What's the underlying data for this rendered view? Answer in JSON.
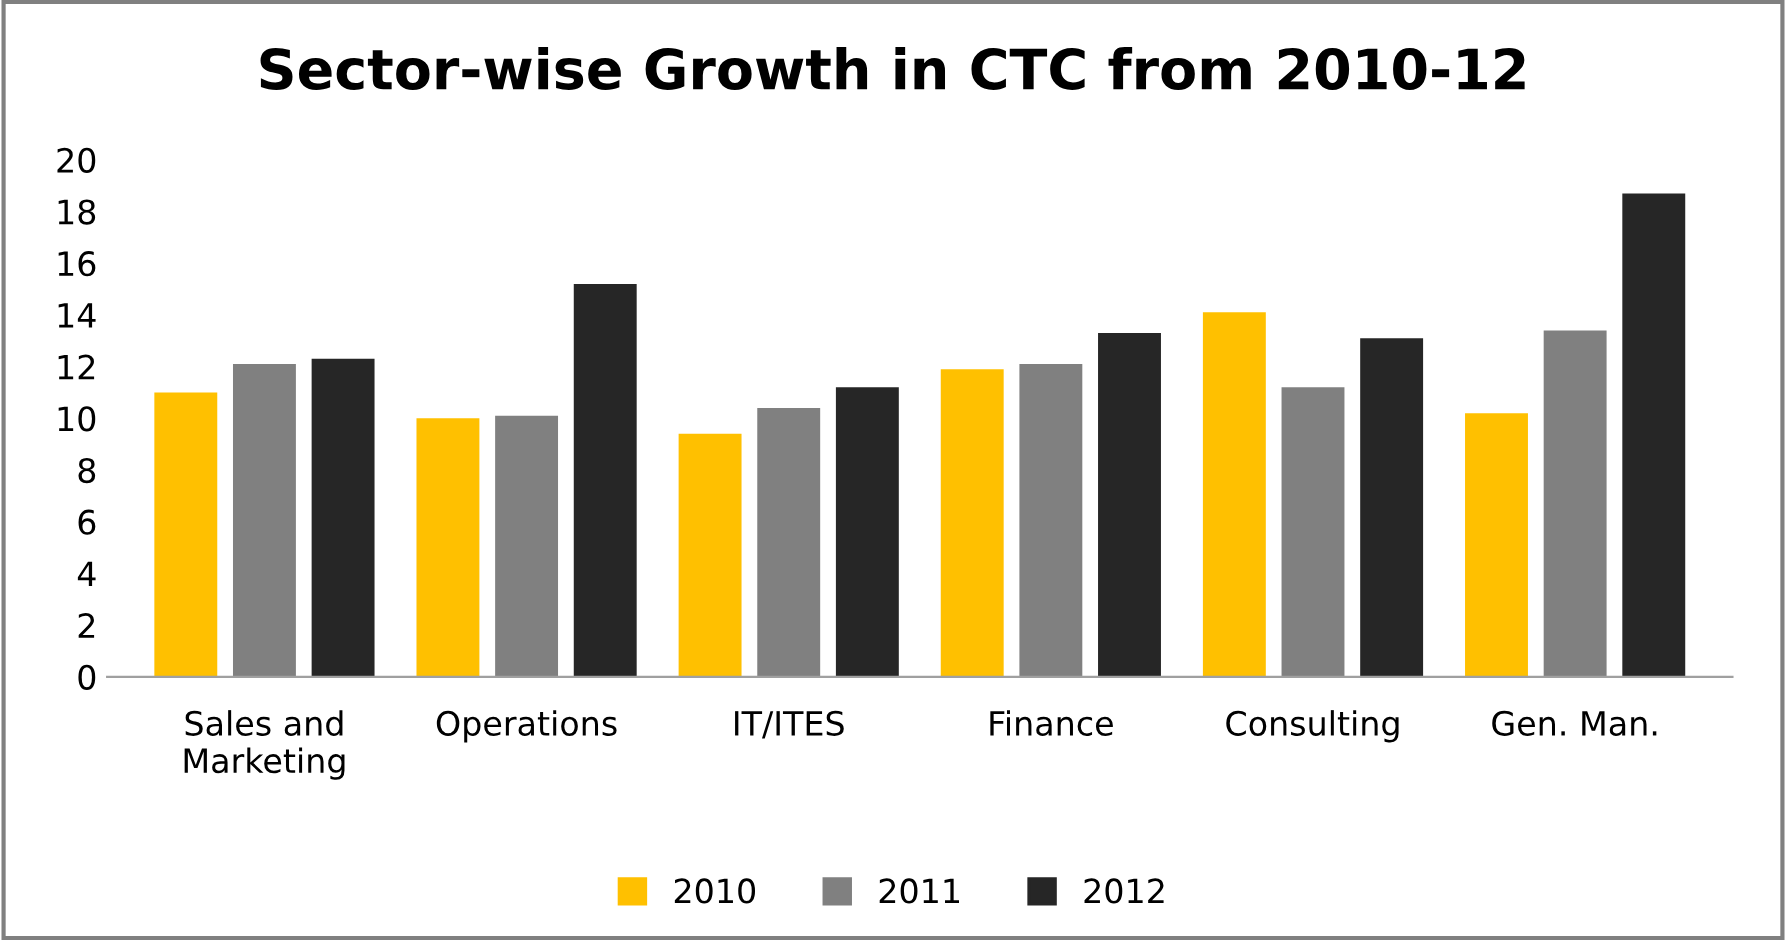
{
  "chart_data": {
    "type": "bar",
    "title": "Sector-wise Growth in CTC from 2010-12",
    "categories": [
      "Sales and\nMarketing",
      "Operations",
      "IT/ITES",
      "Finance",
      "Consulting",
      "Gen. Man."
    ],
    "series": [
      {
        "name": "2010",
        "color": "#ffc000",
        "values": [
          11.0,
          10.0,
          9.4,
          11.9,
          14.1,
          10.2
        ]
      },
      {
        "name": "2011",
        "color": "#808080",
        "values": [
          12.1,
          10.1,
          10.4,
          12.1,
          11.2,
          13.4
        ]
      },
      {
        "name": "2012",
        "color": "#262626",
        "values": [
          12.3,
          15.2,
          11.2,
          13.3,
          13.1,
          18.7
        ]
      }
    ],
    "ylim": [
      0,
      20
    ],
    "yticks": [
      0,
      2,
      4,
      6,
      8,
      10,
      12,
      14,
      16,
      18,
      20
    ],
    "grid": false,
    "legend": "bottom"
  }
}
